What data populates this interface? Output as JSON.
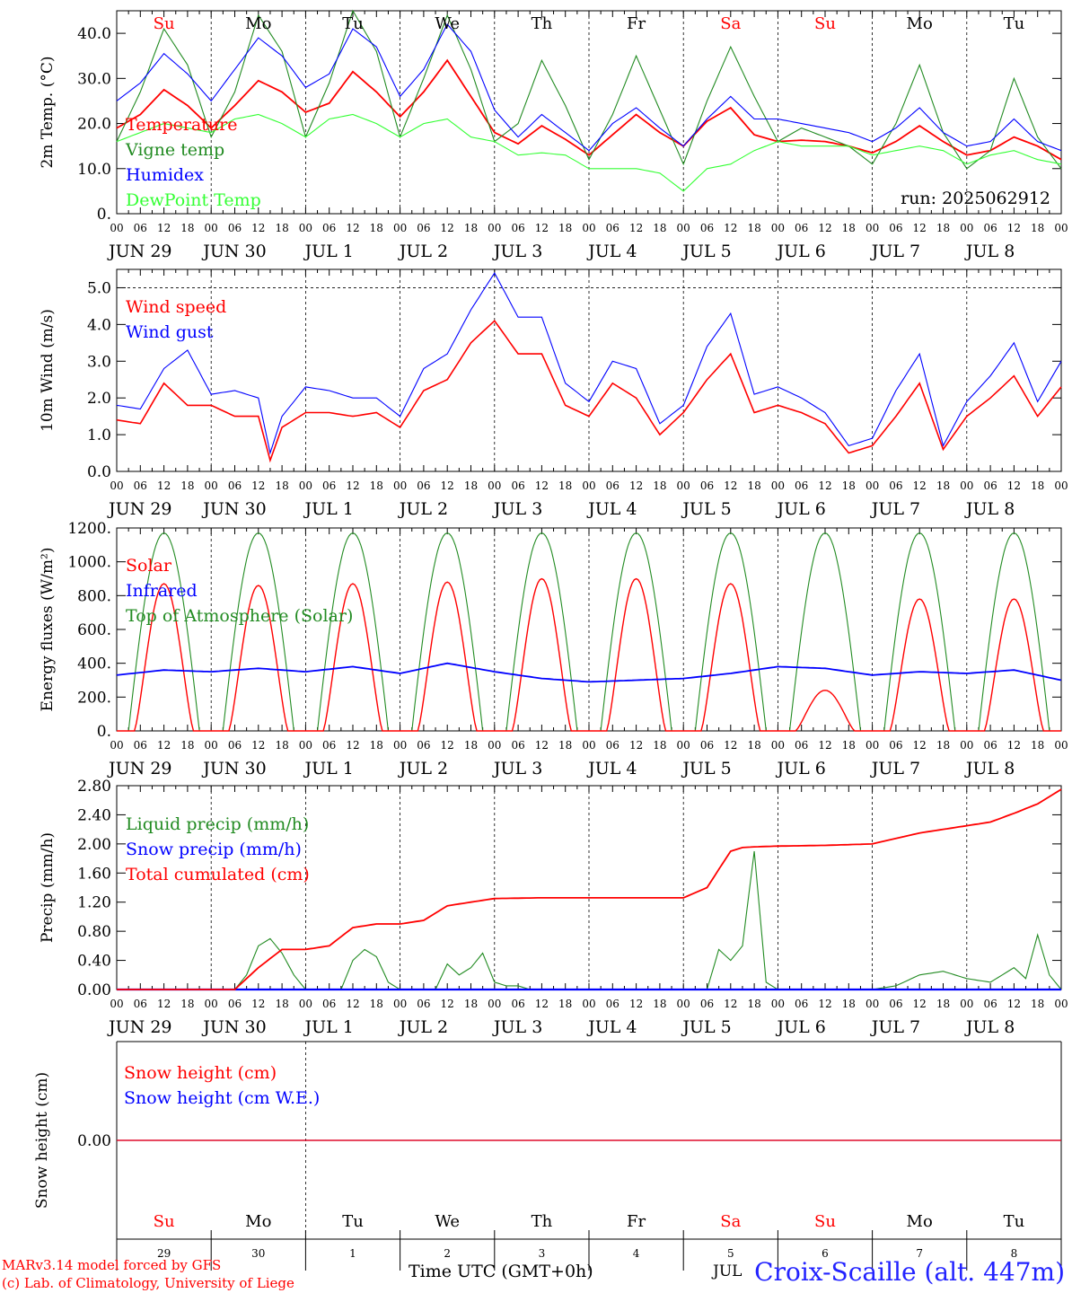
{
  "chart_data": [
    {
      "type": "line",
      "ylabel": "2m Temp. (°C)",
      "ylim": [
        0,
        45
      ],
      "yticks": [
        "0.",
        "10.0",
        "20.0",
        "30.0",
        "40.0"
      ],
      "run_label": "run: 2025062912",
      "day_markers": [
        {
          "label": "Su",
          "color": "#ff0000"
        },
        {
          "label": "Mo",
          "color": "#000000"
        },
        {
          "label": "Tu",
          "color": "#000000"
        },
        {
          "label": "We",
          "color": "#000000"
        },
        {
          "label": "Th",
          "color": "#000000"
        },
        {
          "label": "Fr",
          "color": "#000000"
        },
        {
          "label": "Sa",
          "color": "#ff0000"
        },
        {
          "label": "Su",
          "color": "#ff0000"
        },
        {
          "label": "Mo",
          "color": "#000000"
        },
        {
          "label": "Tu",
          "color": "#000000"
        }
      ],
      "series": [
        {
          "name": "Temperature",
          "color": "#ff0000",
          "x": [
            0,
            6,
            12,
            18,
            24,
            30,
            36,
            42,
            48,
            54,
            60,
            66,
            72,
            78,
            84,
            90,
            96,
            102,
            108,
            114,
            120,
            126,
            132,
            138,
            144,
            150,
            156,
            162,
            168,
            174,
            180,
            186,
            192,
            198,
            204,
            210,
            216,
            222,
            228,
            234,
            240
          ],
          "y": [
            19,
            22,
            27.5,
            24,
            19,
            24,
            29.5,
            27,
            22.5,
            24.5,
            31.5,
            27,
            21.5,
            27,
            34,
            26,
            18,
            15.5,
            19.5,
            16.5,
            13,
            17.5,
            22,
            18,
            15,
            20.5,
            23.5,
            17.5,
            16,
            16.3,
            16,
            15,
            13.5,
            16,
            19.5,
            16,
            13,
            14,
            17,
            15,
            12
          ]
        },
        {
          "name": "Vigne temp",
          "color": "#228b22",
          "x": [
            0,
            6,
            12,
            18,
            24,
            30,
            36,
            42,
            48,
            54,
            60,
            66,
            72,
            78,
            84,
            90,
            96,
            102,
            108,
            114,
            120,
            126,
            132,
            138,
            144,
            150,
            156,
            162,
            168,
            174,
            180,
            186,
            192,
            198,
            204,
            210,
            216,
            222,
            228,
            234,
            240
          ],
          "y": [
            16,
            27,
            41,
            33,
            17,
            27,
            44,
            36,
            17,
            29,
            45,
            36,
            17,
            30,
            44,
            32,
            16,
            20,
            34,
            24,
            12,
            22,
            35,
            23,
            11,
            25,
            37,
            26,
            16,
            19,
            17,
            15,
            11,
            20,
            33,
            18,
            10,
            14,
            30,
            17,
            10
          ]
        },
        {
          "name": "Humidex",
          "color": "#0000ff",
          "x": [
            0,
            6,
            12,
            18,
            24,
            30,
            36,
            42,
            48,
            54,
            60,
            66,
            72,
            78,
            84,
            90,
            96,
            102,
            108,
            114,
            120,
            126,
            132,
            138,
            144,
            150,
            156,
            162,
            168,
            174,
            180,
            186,
            192,
            198,
            204,
            210,
            216,
            222,
            228,
            234,
            240
          ],
          "y": [
            25,
            29,
            35.5,
            31,
            25,
            32,
            39,
            35,
            28,
            31,
            41,
            37,
            26,
            32,
            42,
            36,
            23,
            17,
            22,
            18,
            14,
            20,
            23.5,
            19,
            15,
            21,
            26,
            21,
            21,
            20,
            19,
            18,
            16,
            19,
            23.5,
            18,
            15,
            16,
            21,
            16,
            14
          ]
        },
        {
          "name": "DewPoint Temp",
          "color": "#33ff33",
          "x": [
            0,
            6,
            12,
            18,
            24,
            30,
            36,
            42,
            48,
            54,
            60,
            66,
            72,
            78,
            84,
            90,
            96,
            102,
            108,
            114,
            120,
            126,
            132,
            138,
            144,
            150,
            156,
            162,
            168,
            174,
            180,
            186,
            192,
            198,
            204,
            210,
            216,
            222,
            228,
            234,
            240
          ],
          "y": [
            16,
            18,
            20,
            19,
            18,
            21,
            22,
            20,
            17,
            21,
            22,
            20,
            17,
            20,
            21,
            17,
            16,
            13,
            13.5,
            13,
            10,
            10,
            10,
            9,
            5,
            10,
            11,
            14,
            16,
            15,
            15,
            15,
            13,
            14,
            15,
            14,
            11,
            13,
            14,
            12,
            11
          ]
        }
      ]
    },
    {
      "type": "line",
      "ylabel": "10m Wind (m/s)",
      "ylim": [
        0,
        5.5
      ],
      "yticks": [
        "0.0",
        "1.0",
        "2.0",
        "3.0",
        "4.0",
        "5.0"
      ],
      "reference_line": 5.0,
      "series": [
        {
          "name": "Wind speed",
          "color": "#ff0000",
          "x": [
            0,
            6,
            12,
            18,
            24,
            30,
            36,
            39,
            42,
            48,
            54,
            60,
            66,
            72,
            78,
            84,
            90,
            96,
            102,
            108,
            114,
            120,
            126,
            132,
            138,
            144,
            150,
            156,
            162,
            168,
            174,
            180,
            186,
            192,
            198,
            204,
            210,
            216,
            222,
            228,
            234,
            240
          ],
          "y": [
            1.4,
            1.3,
            2.4,
            1.8,
            1.8,
            1.5,
            1.5,
            0.3,
            1.2,
            1.6,
            1.6,
            1.5,
            1.6,
            1.2,
            2.2,
            2.5,
            3.5,
            4.1,
            3.2,
            3.2,
            1.8,
            1.5,
            2.4,
            2.0,
            1.0,
            1.6,
            2.5,
            3.2,
            1.6,
            1.8,
            1.6,
            1.3,
            0.5,
            0.7,
            1.5,
            2.4,
            0.6,
            1.5,
            2.0,
            2.6,
            1.5,
            2.3
          ]
        },
        {
          "name": "Wind gust",
          "color": "#0000ff",
          "x": [
            0,
            6,
            12,
            18,
            24,
            30,
            36,
            39,
            42,
            48,
            54,
            60,
            66,
            72,
            78,
            84,
            90,
            96,
            102,
            108,
            114,
            120,
            126,
            132,
            138,
            144,
            150,
            156,
            162,
            168,
            174,
            180,
            186,
            192,
            198,
            204,
            210,
            216,
            222,
            228,
            234,
            240
          ],
          "y": [
            1.8,
            1.7,
            2.8,
            3.3,
            2.1,
            2.2,
            2.0,
            0.5,
            1.5,
            2.3,
            2.2,
            2.0,
            2.0,
            1.5,
            2.8,
            3.2,
            4.4,
            5.4,
            4.2,
            4.2,
            2.4,
            1.9,
            3.0,
            2.8,
            1.3,
            1.8,
            3.4,
            4.3,
            2.1,
            2.3,
            2.0,
            1.6,
            0.7,
            0.9,
            2.2,
            3.2,
            0.7,
            1.9,
            2.6,
            3.5,
            1.9,
            3.0
          ]
        }
      ]
    },
    {
      "type": "line",
      "ylabel": "Energy fluxes (W/m²)",
      "ylim": [
        0,
        1200
      ],
      "yticks": [
        "0.",
        "200.",
        "400.",
        "600.",
        "800.",
        "1000.",
        "1200."
      ],
      "series": [
        {
          "name": "Solar",
          "color": "#ff0000",
          "daily_peak": [
            870,
            860,
            870,
            880,
            900,
            900,
            870,
            240,
            780,
            780
          ]
        },
        {
          "name": "Infrared",
          "color": "#0000ff",
          "x": [
            0,
            12,
            24,
            36,
            48,
            60,
            72,
            84,
            96,
            108,
            120,
            132,
            144,
            156,
            168,
            180,
            192,
            204,
            216,
            228,
            240
          ],
          "y": [
            330,
            360,
            350,
            370,
            350,
            380,
            340,
            400,
            350,
            310,
            290,
            300,
            310,
            340,
            380,
            370,
            330,
            350,
            340,
            360,
            300
          ]
        },
        {
          "name": "Top of Atmosphere (Solar)",
          "color": "#228b22",
          "daily_peak": 1170
        }
      ]
    },
    {
      "type": "line",
      "ylabel": "Precip (mm/h)",
      "ylim": [
        0,
        2.8
      ],
      "yticks": [
        "0.00",
        "0.40",
        "0.80",
        "1.20",
        "1.60",
        "2.00",
        "2.40",
        "2.80"
      ],
      "series": [
        {
          "name": "Liquid precip (mm/h)",
          "color": "#228b22",
          "x": [
            0,
            30,
            33,
            36,
            39,
            42,
            45,
            48,
            57,
            60,
            63,
            66,
            69,
            72,
            81,
            84,
            87,
            90,
            93,
            96,
            99,
            102,
            105,
            108,
            144,
            150,
            153,
            156,
            159,
            162,
            165,
            168,
            174,
            180,
            186,
            192,
            198,
            204,
            210,
            216,
            222,
            225,
            228,
            231,
            234,
            237,
            240
          ],
          "y": [
            0,
            0,
            0.2,
            0.6,
            0.7,
            0.5,
            0.2,
            0,
            0,
            0.4,
            0.55,
            0.45,
            0.1,
            0,
            0,
            0.35,
            0.2,
            0.3,
            0.5,
            0.1,
            0.05,
            0.05,
            0,
            0,
            0,
            0,
            0.55,
            0.4,
            0.6,
            1.9,
            0.1,
            0,
            0,
            0,
            0,
            0,
            0.05,
            0.2,
            0.25,
            0.15,
            0.1,
            0.2,
            0.3,
            0.15,
            0.75,
            0.2,
            0
          ]
        },
        {
          "name": "Snow precip (mm/h)",
          "color": "#0000ff",
          "x": [
            0,
            240
          ],
          "y": [
            0,
            0
          ]
        },
        {
          "name": "Total cumulated (cm)",
          "color": "#ff0000",
          "x": [
            0,
            30,
            36,
            42,
            48,
            54,
            60,
            66,
            72,
            78,
            84,
            90,
            96,
            108,
            120,
            132,
            144,
            150,
            156,
            159,
            162,
            168,
            180,
            192,
            204,
            216,
            222,
            228,
            234,
            240
          ],
          "y": [
            0,
            0,
            0.3,
            0.55,
            0.55,
            0.6,
            0.85,
            0.9,
            0.9,
            0.95,
            1.15,
            1.2,
            1.25,
            1.26,
            1.26,
            1.26,
            1.26,
            1.4,
            1.9,
            1.95,
            1.96,
            1.97,
            1.98,
            2.0,
            2.15,
            2.25,
            2.3,
            2.42,
            2.55,
            2.75
          ]
        }
      ]
    },
    {
      "type": "line",
      "ylabel": "Snow height (cm)",
      "yticks": [
        "0.00"
      ],
      "series": [
        {
          "name": "Snow height (cm)",
          "color": "#ff0000",
          "x": [
            0,
            240
          ],
          "y": [
            0,
            0
          ]
        },
        {
          "name": "Snow height (cm W.E.)",
          "color": "#0000ff",
          "x": [
            0,
            240
          ],
          "y": [
            0,
            0
          ]
        }
      ],
      "day_markers": [
        {
          "label": "Su",
          "color": "#ff0000"
        },
        {
          "label": "Mo",
          "color": "#000000"
        },
        {
          "label": "Tu",
          "color": "#000000"
        },
        {
          "label": "We",
          "color": "#000000"
        },
        {
          "label": "Th",
          "color": "#000000"
        },
        {
          "label": "Fr",
          "color": "#000000"
        },
        {
          "label": "Sa",
          "color": "#ff0000"
        },
        {
          "label": "Su",
          "color": "#ff0000"
        },
        {
          "label": "Mo",
          "color": "#000000"
        },
        {
          "label": "Tu",
          "color": "#000000"
        }
      ],
      "day_numbers": [
        "29",
        "30",
        "1",
        "2",
        "3",
        "4",
        "5",
        "6",
        "7",
        "8"
      ]
    }
  ],
  "x_axis": {
    "hour_ticks": [
      "00",
      "06",
      "12",
      "18"
    ],
    "final_hour": "00",
    "day_labels": [
      "JUN 29",
      "JUN 30",
      "JUL  1",
      "JUL  2",
      "JUL  3",
      "JUL  4",
      "JUL  5",
      "JUL  6",
      "JUL  7",
      "JUL  8"
    ]
  },
  "footer": {
    "credit_line1": "MARv3.14 model forced by GFS",
    "credit_line2": "(c) Lab. of Climatology, University of Liege",
    "axis_title": "Time UTC (GMT+0h)",
    "month": "JUL",
    "station": "Croix-Scaille (alt. 447m)"
  }
}
